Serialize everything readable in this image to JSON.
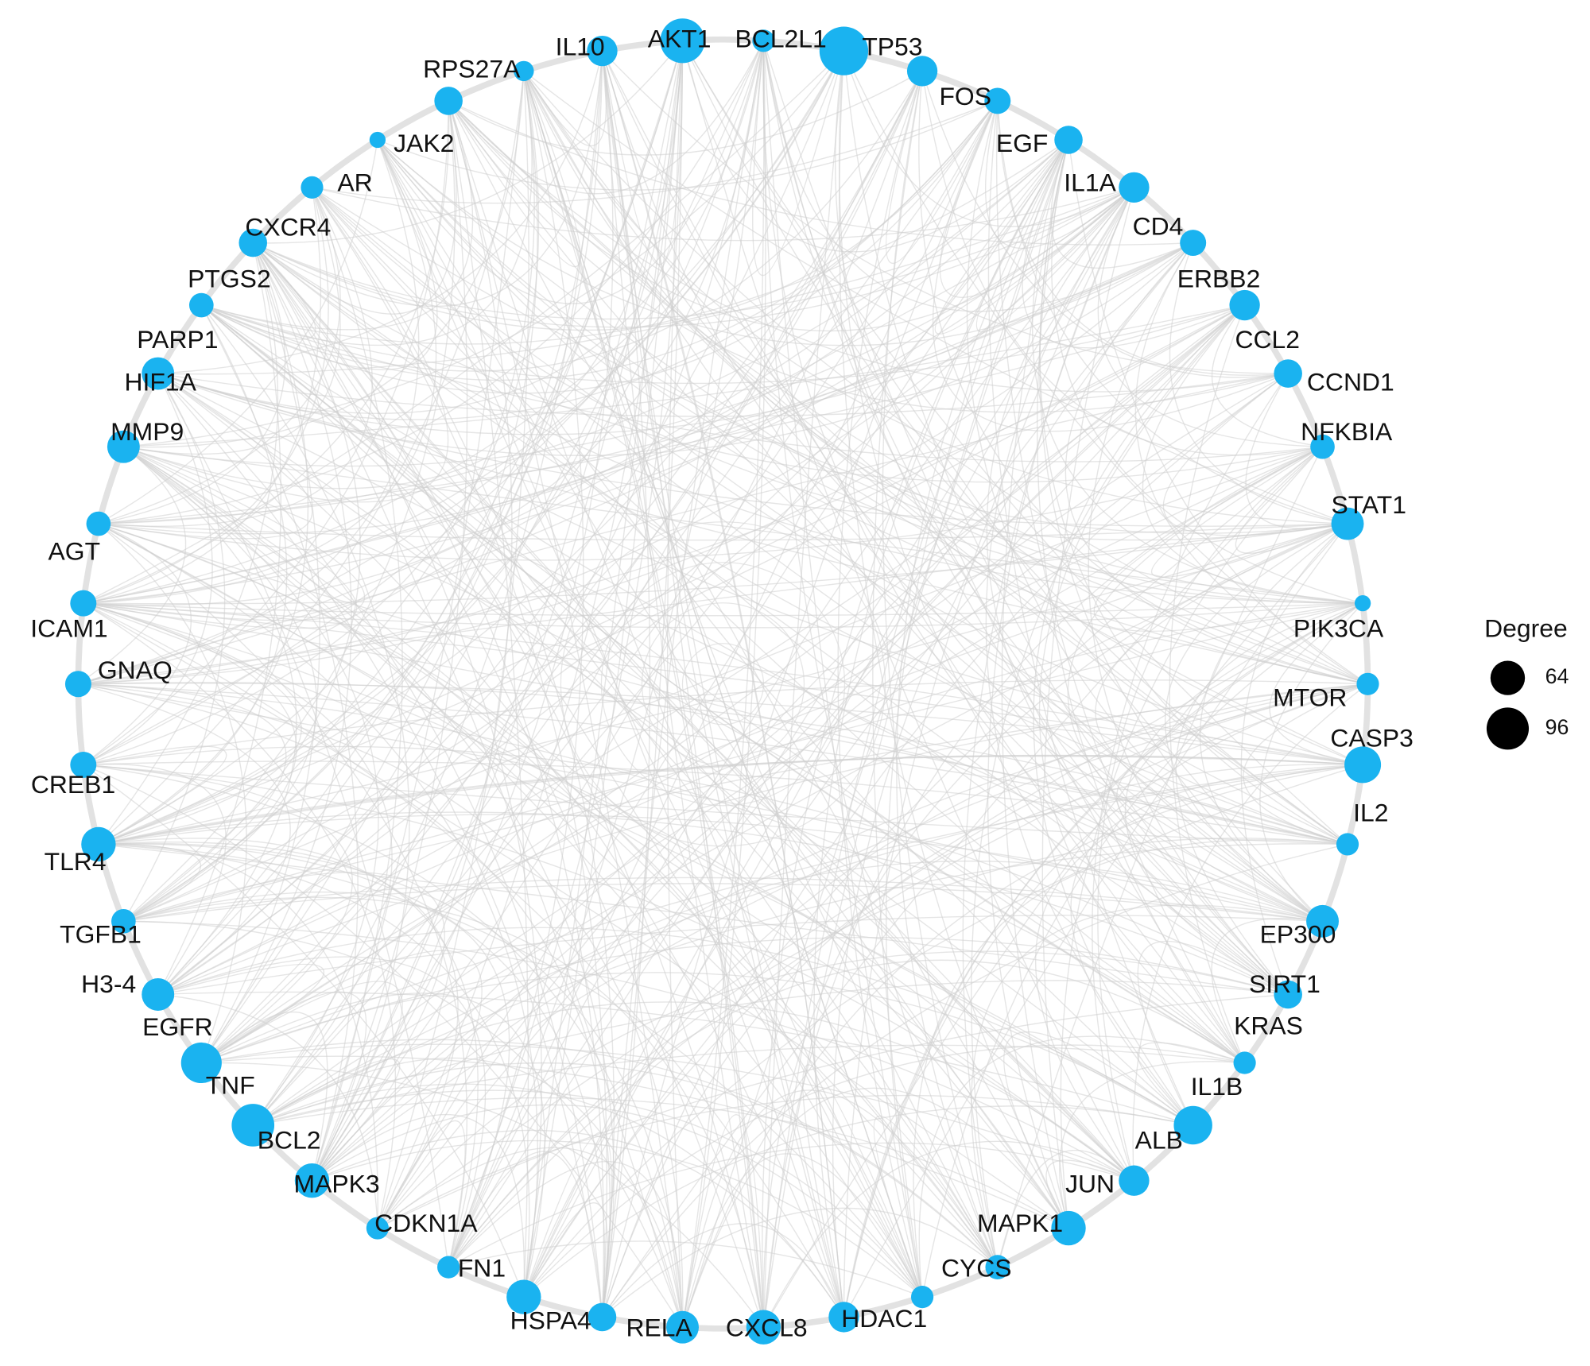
{
  "nodes": [
    {
      "label": "AKT1",
      "degree": 107
    },
    {
      "label": "BCL2L1",
      "degree": 27
    },
    {
      "label": "TP53",
      "degree": 128
    },
    {
      "label": "FOS",
      "degree": 50
    },
    {
      "label": "EGF",
      "degree": 37
    },
    {
      "label": "IL1A",
      "degree": 43
    },
    {
      "label": "CD4",
      "degree": 50
    },
    {
      "label": "ERBB2",
      "degree": 37
    },
    {
      "label": "CCL2",
      "degree": 50
    },
    {
      "label": "CCND1",
      "degree": 43
    },
    {
      "label": "NFKBIA",
      "degree": 32
    },
    {
      "label": "STAT1",
      "degree": 57
    },
    {
      "label": "PIK3CA",
      "degree": 14
    },
    {
      "label": "MTOR",
      "degree": 27
    },
    {
      "label": "CASP3",
      "degree": 72
    },
    {
      "label": "IL2",
      "degree": 27
    },
    {
      "label": "EP300",
      "degree": 57
    },
    {
      "label": "SIRT1",
      "degree": 43
    },
    {
      "label": "KRAS",
      "degree": 27
    },
    {
      "label": "IL1B",
      "degree": 80
    },
    {
      "label": "ALB",
      "degree": 50
    },
    {
      "label": "JUN",
      "degree": 64
    },
    {
      "label": "MAPK1",
      "degree": 32
    },
    {
      "label": "CYCS",
      "degree": 27
    },
    {
      "label": "HDAC1",
      "degree": 50
    },
    {
      "label": "CXCL8",
      "degree": 64
    },
    {
      "label": "RELA",
      "degree": 57
    },
    {
      "label": "HSPA4",
      "degree": 43
    },
    {
      "label": "FN1",
      "degree": 64
    },
    {
      "label": "CDKN1A",
      "degree": 27
    },
    {
      "label": "MAPK3",
      "degree": 27
    },
    {
      "label": "BCL2",
      "degree": 64
    },
    {
      "label": "TNF",
      "degree": 98
    },
    {
      "label": "EGFR",
      "degree": 89
    },
    {
      "label": "H3-4",
      "degree": 57
    },
    {
      "label": "TGFB1",
      "degree": 32
    },
    {
      "label": "TLR4",
      "degree": 64
    },
    {
      "label": "CREB1",
      "degree": 37
    },
    {
      "label": "GNAQ",
      "degree": 37
    },
    {
      "label": "ICAM1",
      "degree": 37
    },
    {
      "label": "AGT",
      "degree": 32
    },
    {
      "label": "MMP9",
      "degree": 57
    },
    {
      "label": "HIF1A",
      "degree": 57
    },
    {
      "label": "PARP1",
      "degree": 32
    },
    {
      "label": "PTGS2",
      "degree": 43
    },
    {
      "label": "CXCR4",
      "degree": 27
    },
    {
      "label": "AR",
      "degree": 14
    },
    {
      "label": "JAK2",
      "degree": 43
    },
    {
      "label": "RPS27A",
      "degree": 22
    },
    {
      "label": "IL10",
      "degree": 50
    }
  ],
  "legend": {
    "title": "Degree",
    "items": [
      64,
      96
    ]
  }
}
